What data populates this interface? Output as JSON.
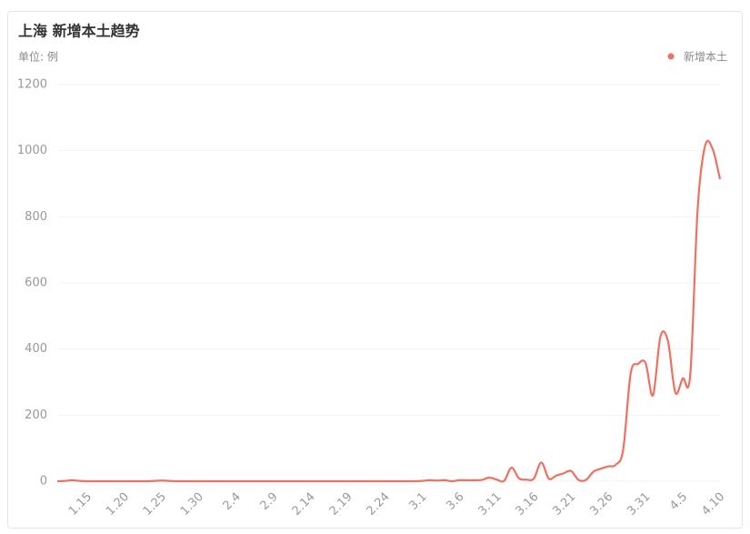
{
  "chart_data": {
    "type": "line",
    "title": "上海 新增本土趋势",
    "unit_label": "单位: 例",
    "categories": [
      null,
      null,
      null,
      null,
      "1.15",
      null,
      null,
      null,
      null,
      "1.20",
      null,
      null,
      null,
      null,
      "1.25",
      null,
      null,
      null,
      null,
      "1.30",
      null,
      null,
      null,
      null,
      "2.4",
      null,
      null,
      null,
      null,
      "2.9",
      null,
      null,
      null,
      null,
      "2.14",
      null,
      null,
      null,
      null,
      "2.19",
      null,
      null,
      null,
      null,
      "2.24",
      null,
      null,
      null,
      null,
      "3.1",
      null,
      null,
      null,
      null,
      "3.6",
      null,
      null,
      null,
      null,
      "3.11",
      null,
      null,
      null,
      null,
      "3.16",
      null,
      null,
      null,
      null,
      "3.21",
      null,
      null,
      null,
      null,
      "3.26",
      null,
      null,
      null,
      null,
      "3.31",
      null,
      null,
      null,
      null,
      "4.5",
      null,
      null,
      null,
      null,
      "4.10"
    ],
    "series": [
      {
        "name": "新增本土",
        "color": "#f07060",
        "values": [
          0,
          1,
          3,
          1,
          0,
          0,
          0,
          0,
          0,
          0,
          0,
          0,
          0,
          1,
          2,
          1,
          0,
          0,
          0,
          0,
          0,
          0,
          0,
          0,
          0,
          0,
          0,
          0,
          0,
          0,
          0,
          0,
          0,
          0,
          0,
          0,
          0,
          0,
          0,
          0,
          0,
          0,
          0,
          0,
          0,
          0,
          0,
          0,
          0,
          1,
          3,
          2,
          3,
          0,
          3,
          3,
          3,
          4,
          11,
          5,
          1,
          41,
          9,
          5,
          8,
          57,
          8,
          17,
          24,
          31,
          4,
          4,
          29,
          38,
          45,
          50,
          96,
          326,
          355,
          358,
          260,
          438,
          425,
          268,
          311,
          322,
          824,
          1015,
          1006,
          914
        ]
      }
    ],
    "ylim": [
      0,
      1200
    ],
    "yticks": [
      0,
      200,
      400,
      600,
      800,
      1000,
      1200
    ],
    "grid": true,
    "legend": "top-right"
  }
}
